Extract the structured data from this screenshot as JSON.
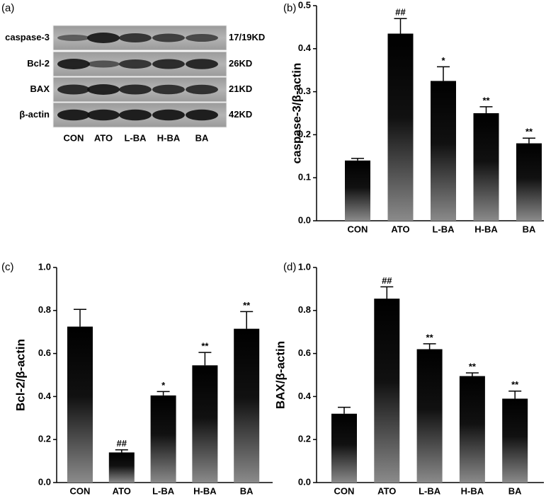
{
  "blot": {
    "panel_label": "(a)",
    "rows": [
      {
        "name": "caspase-3",
        "size": "17/19KD"
      },
      {
        "name": "Bcl-2",
        "size": "26KD"
      },
      {
        "name": "BAX",
        "size": "21KD"
      },
      {
        "name": "β-actin",
        "size": "42KD"
      }
    ],
    "lanes": [
      "CON",
      "ATO",
      "L-BA",
      "H-BA",
      "BA"
    ]
  },
  "chart_data": [
    {
      "type": "bar",
      "panel_label": "(b)",
      "y_label": "caspase-3/β-actin",
      "categories": [
        "CON",
        "ATO",
        "L-BA",
        "H-BA",
        "BA"
      ],
      "values": [
        0.14,
        0.435,
        0.325,
        0.25,
        0.18
      ],
      "errors": [
        0.005,
        0.035,
        0.033,
        0.015,
        0.012
      ],
      "annotations": [
        null,
        "##",
        "*",
        "**",
        "**"
      ],
      "ylim": [
        0,
        0.5
      ],
      "yticks": [
        {
          "value": 0,
          "label": "0.0"
        },
        0.1,
        0.2,
        0.3,
        0.4,
        0.5
      ]
    },
    {
      "type": "bar",
      "panel_label": "(c)",
      "y_label": "Bcl-2/β-actin",
      "categories": [
        "CON",
        "ATO",
        "L-BA",
        "H-BA",
        "BA"
      ],
      "values": [
        0.725,
        0.14,
        0.405,
        0.545,
        0.715
      ],
      "errors": [
        0.08,
        0.012,
        0.018,
        0.06,
        0.08
      ],
      "annotations": [
        null,
        "##",
        "*",
        "**",
        "**"
      ],
      "ylim": [
        0,
        1
      ],
      "yticks": [
        {
          "value": 0,
          "label": "0.0"
        },
        0.2,
        0.4,
        0.6,
        0.8,
        {
          "value": 1,
          "label": "1.0"
        }
      ]
    },
    {
      "type": "bar",
      "panel_label": "(d)",
      "y_label": "BAX/β-actin",
      "categories": [
        "CON",
        "ATO",
        "L-BA",
        "H-BA",
        "BA"
      ],
      "values": [
        0.32,
        0.855,
        0.62,
        0.495,
        0.39
      ],
      "errors": [
        0.03,
        0.055,
        0.025,
        0.015,
        0.035
      ],
      "annotations": [
        null,
        "##",
        "**",
        "**",
        "**"
      ],
      "ylim": [
        0,
        1
      ],
      "yticks": [
        {
          "value": 0,
          "label": "0.0"
        },
        0.2,
        0.4,
        0.6,
        0.8,
        {
          "value": 1,
          "label": "1.0"
        }
      ]
    }
  ]
}
